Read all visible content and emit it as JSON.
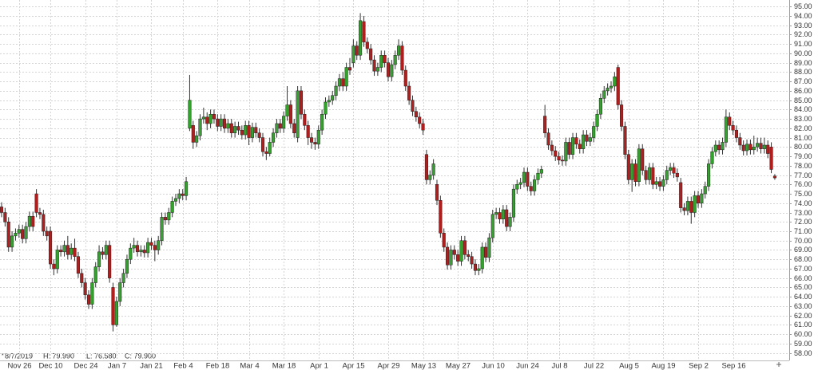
{
  "chart_data": {
    "type": "candlestick",
    "categories": [
      null,
      null,
      null,
      null,
      null,
      "Nov 26",
      null,
      null,
      null,
      null,
      null,
      null,
      null,
      null,
      "Dec 10",
      null,
      null,
      null,
      null,
      null,
      null,
      null,
      null,
      null,
      "Dec 24",
      null,
      null,
      null,
      null,
      null,
      null,
      null,
      null,
      "Jan 7",
      null,
      null,
      null,
      null,
      null,
      null,
      null,
      null,
      null,
      "Jan 21",
      null,
      null,
      null,
      null,
      null,
      null,
      null,
      null,
      "Feb 4",
      null,
      null,
      null,
      null,
      null,
      null,
      null,
      null,
      null,
      "Feb 18",
      null,
      null,
      null,
      null,
      null,
      null,
      null,
      null,
      "Mar 4",
      null,
      null,
      null,
      null,
      null,
      null,
      null,
      null,
      null,
      "Mar 18",
      null,
      null,
      null,
      null,
      null,
      null,
      null,
      null,
      null,
      "Apr 1",
      null,
      null,
      null,
      null,
      null,
      null,
      null,
      null,
      null,
      "Apr 15",
      null,
      null,
      null,
      null,
      null,
      null,
      null,
      null,
      null,
      "Apr 29",
      null,
      null,
      null,
      null,
      null,
      null,
      null,
      null,
      null,
      "May 13",
      null,
      null,
      null,
      null,
      null,
      null,
      null,
      null,
      null,
      "May 27",
      null,
      null,
      null,
      null,
      null,
      null,
      null,
      null,
      null,
      "Jun 10",
      null,
      null,
      null,
      null,
      null,
      null,
      null,
      null,
      null,
      "Jun 24",
      null,
      null,
      null,
      null,
      null,
      null,
      null,
      null,
      "Jul 8",
      null,
      null,
      null,
      null,
      null,
      null,
      null,
      null,
      null,
      "Jul 22",
      null,
      null,
      null,
      null,
      null,
      null,
      null,
      null,
      null,
      "Aug 5",
      null,
      null,
      null,
      null,
      null,
      null,
      null,
      null,
      null,
      "Aug 19",
      null,
      null,
      null,
      null,
      null,
      null,
      null,
      null,
      null,
      "Sep 2",
      null,
      null,
      null,
      null,
      null,
      null,
      null,
      null,
      null,
      "Sep 16",
      null,
      null,
      null,
      null,
      null,
      null,
      null,
      null,
      null,
      null,
      null,
      null
    ],
    "series": [
      {
        "up_color": "#35a12e",
        "down_color": "#b01e1e",
        "open": [
          73.6,
          73,
          72,
          69.3,
          70.5,
          70.8,
          71.2,
          70.2,
          71.5,
          72.6,
          75,
          73,
          72.8,
          71,
          71,
          67.5,
          67,
          69,
          68.8,
          69.5,
          68.5,
          69.2,
          68.3,
          66.5,
          65.5,
          64.2,
          63.2,
          65.5,
          67.2,
          68.8,
          68.5,
          69.5,
          65,
          61,
          63.5,
          65.5,
          66.5,
          68,
          69.2,
          69.5,
          68.8,
          69,
          68.7,
          69.8,
          69.5,
          69,
          70,
          72.5,
          72.2,
          73,
          74.2,
          74.5,
          75,
          74.8,
          82,
          82.3,
          80.5,
          81.2,
          83,
          83.2,
          82.5,
          83.5,
          83,
          82.2,
          83,
          82,
          82.5,
          81.5,
          82.2,
          81.8,
          81.3,
          82.3,
          81,
          82.1,
          81.5,
          81,
          79.5,
          79.3,
          80.5,
          81.5,
          82.5,
          82,
          83.3,
          84.5,
          82.5,
          81,
          86,
          83.5,
          82.3,
          81,
          80.5,
          80.3,
          81.8,
          83.5,
          84.8,
          85,
          85.5,
          86.5,
          87.3,
          86.5,
          88.5,
          89,
          90.8,
          89.8,
          93.4,
          91.2,
          90.5,
          89.3,
          88.1,
          88.5,
          89.8,
          89,
          87.5,
          88.8,
          89.8,
          90.8,
          88.2,
          86.5,
          85,
          83.8,
          83.2,
          82.5,
          79.2,
          76.5,
          77,
          76,
          74.3,
          70.8,
          69.3,
          67.4,
          69,
          68.5,
          67.8,
          70,
          68.5,
          68.3,
          67.5,
          66.8,
          67,
          69.3,
          68.2,
          70.3,
          72.8,
          73,
          72.3,
          73.3,
          71.5,
          72.5,
          75.5,
          76,
          76.2,
          77.3,
          75.8,
          75.3,
          76.5,
          77.2,
          83.3,
          81.5,
          80.2,
          79.6,
          79,
          78.6,
          78.5,
          80.5,
          79.2,
          81,
          80.3,
          79.8,
          81.3,
          80.6,
          81,
          82.2,
          83.5,
          85.2,
          86,
          86.3,
          86.5,
          88.5,
          84.5,
          82.2,
          79.2,
          76.5,
          78.2,
          76.3,
          79.8,
          77.5,
          76.5,
          77.8,
          76,
          76.3,
          75.8,
          76.5,
          77.5,
          77.8,
          77.2,
          76.2,
          73.5,
          73.2,
          74.2,
          73,
          74.8,
          74,
          75,
          75.8,
          78.2,
          79.5,
          80.2,
          79.7,
          80.5,
          83.2,
          82.3,
          81.8,
          81,
          80.2,
          79.6,
          80.3,
          79.7,
          80,
          80.4,
          79.8,
          80.2,
          80,
          76.9
        ],
        "high": [
          74.1,
          73.5,
          72.5,
          71,
          71.3,
          71.7,
          71.7,
          72,
          73.1,
          73.1,
          75.5,
          73.5,
          73.3,
          71.5,
          71.5,
          68,
          69.5,
          69.5,
          70,
          70.5,
          69.7,
          70.2,
          68.8,
          67,
          66,
          64.7,
          66,
          67.7,
          69.5,
          69.3,
          70,
          70,
          65.5,
          64,
          66,
          67,
          68.5,
          69.7,
          70.3,
          70,
          69.5,
          69.5,
          70.3,
          70.3,
          70,
          70.5,
          73,
          73,
          73.5,
          74.7,
          75,
          75.5,
          75.5,
          76.8,
          87.7,
          82.8,
          81.7,
          83.5,
          84.2,
          83.7,
          84,
          84,
          83.5,
          83.5,
          83.5,
          83,
          83,
          82.7,
          82.7,
          82.3,
          82.8,
          82.8,
          82.6,
          82.6,
          82,
          81.5,
          80,
          81,
          82,
          83,
          83,
          83.8,
          86.5,
          85,
          83,
          86.5,
          86.5,
          84,
          82.8,
          81.5,
          81,
          82.3,
          84,
          85.3,
          85.5,
          86,
          87,
          87.8,
          88,
          89,
          89.5,
          91.5,
          91.3,
          94.3,
          94,
          91.7,
          91,
          89.8,
          89,
          90.3,
          90.3,
          89.5,
          89.3,
          90.3,
          91.5,
          91.3,
          88.7,
          87,
          85.5,
          84.3,
          83.7,
          83,
          79.7,
          77.5,
          78.7,
          76.5,
          74.8,
          71.3,
          69.8,
          69.5,
          69.5,
          69,
          70.5,
          70.5,
          69,
          68.8,
          68,
          67.5,
          69.8,
          69.8,
          70.8,
          73.3,
          73.5,
          73.5,
          73.8,
          73.8,
          73,
          76,
          76.5,
          76.7,
          77.8,
          77.8,
          76.3,
          77,
          77.7,
          78,
          84.5,
          82,
          80.7,
          80.1,
          79.5,
          79.1,
          81,
          81,
          81.5,
          81.5,
          80.8,
          81.8,
          81.8,
          81.5,
          82.7,
          84,
          85.7,
          86.5,
          86.8,
          87,
          88,
          88.8,
          85,
          82.7,
          79.7,
          78.7,
          78.7,
          80.3,
          80.3,
          78,
          78.3,
          78.3,
          76.8,
          76.8,
          77,
          78,
          78.3,
          78.3,
          77.7,
          76.7,
          74,
          74.7,
          74.7,
          75.3,
          75.3,
          75.5,
          76.3,
          78.7,
          80,
          80.7,
          80.7,
          81,
          84,
          83.7,
          82.8,
          82.3,
          81.5,
          80.7,
          80.8,
          80.8,
          81.2,
          81,
          81,
          81,
          80.7,
          80.5,
          77.1
        ],
        "low": [
          72.5,
          71.5,
          68.8,
          68.8,
          70,
          70.3,
          69.7,
          69.7,
          71,
          71,
          72.5,
          72.3,
          70.5,
          70,
          67,
          66.3,
          66.5,
          68.3,
          68.3,
          68,
          68,
          67.8,
          66,
          65,
          63.7,
          62.7,
          62.7,
          65,
          66.7,
          68,
          68,
          65.5,
          60.3,
          60.8,
          63,
          65,
          66,
          67.5,
          68.7,
          68.3,
          68.3,
          68.2,
          68.2,
          69,
          67.8,
          68.5,
          69.5,
          71.7,
          71.7,
          72.5,
          73.7,
          74,
          74.3,
          74.3,
          81.7,
          79.8,
          80,
          80.7,
          82.5,
          81.8,
          82,
          82.5,
          81.7,
          81.7,
          81.5,
          81.5,
          81,
          81,
          81.3,
          80.8,
          80.8,
          80.2,
          80.5,
          81,
          80.5,
          79,
          78.6,
          79,
          80,
          81,
          81.5,
          81.5,
          82.8,
          82,
          81,
          80.5,
          83,
          81.8,
          80.2,
          79.8,
          79.7,
          79.8,
          81.3,
          83,
          84.3,
          84.5,
          85,
          86,
          86,
          86,
          87.7,
          88.5,
          89.3,
          89.3,
          90.7,
          90,
          88.8,
          87.6,
          87.6,
          88,
          88.5,
          87,
          87,
          88.3,
          89.3,
          87.7,
          86,
          84.5,
          83.3,
          82.7,
          82,
          81.3,
          76,
          76,
          76.5,
          73.8,
          70.3,
          68.8,
          66.9,
          66.9,
          68,
          67.3,
          67.3,
          68,
          67.8,
          67,
          66.3,
          66.3,
          66.5,
          67.7,
          67.7,
          69.8,
          72.3,
          71.8,
          71.8,
          71,
          71,
          72,
          75,
          75.5,
          75.7,
          75.3,
          74.8,
          74.8,
          76,
          76.7,
          81,
          79.7,
          79.1,
          78.5,
          78.1,
          78,
          78,
          78.7,
          78.7,
          79.8,
          79.3,
          79.3,
          80.1,
          80.1,
          80.5,
          81.7,
          83,
          84.7,
          85.5,
          85.8,
          86,
          84,
          81.7,
          78.7,
          76,
          75.2,
          75.8,
          75.8,
          77,
          76,
          76,
          75.5,
          75.5,
          75.3,
          75.3,
          76,
          77,
          76.7,
          76.3,
          73,
          72.7,
          72.7,
          71.8,
          72.5,
          73.5,
          73.5,
          74.5,
          75.3,
          77.7,
          79,
          79.2,
          79.2,
          80,
          81.8,
          81.3,
          80.5,
          79.7,
          79.1,
          79.1,
          79.2,
          79.2,
          79.5,
          79.3,
          79.3,
          78.8,
          77.2,
          76.5
        ],
        "close": [
          73,
          72,
          69.3,
          70.5,
          70.8,
          71.2,
          70.2,
          71.5,
          72.6,
          71.5,
          73,
          72.8,
          71,
          70.5,
          67.5,
          67,
          69,
          68.8,
          69.5,
          68.5,
          69.2,
          68.3,
          66.5,
          65.5,
          64.2,
          63.2,
          65.5,
          67.2,
          68.8,
          68.5,
          69.5,
          66,
          61,
          63.5,
          65.5,
          66.5,
          68,
          69.2,
          69.5,
          68.8,
          69,
          68.7,
          69.8,
          69.5,
          69,
          70,
          72.5,
          72.2,
          73,
          74.2,
          74.5,
          75,
          74.8,
          76.3,
          85,
          80.5,
          81.2,
          83,
          83.2,
          82.5,
          83.5,
          83,
          82.2,
          83,
          82,
          82.5,
          81.5,
          82.2,
          81.8,
          81.3,
          82.3,
          81,
          82.1,
          81.5,
          81,
          79.5,
          79.3,
          80.5,
          81.5,
          82.5,
          82,
          83.3,
          84.5,
          82.5,
          81.5,
          86,
          83.5,
          82.3,
          81,
          80.5,
          80.3,
          81.8,
          83.5,
          84.8,
          85,
          85.5,
          86.5,
          87.3,
          86.5,
          88.5,
          88.2,
          90.8,
          89.8,
          93.5,
          91.2,
          90.5,
          89.3,
          88.1,
          88.5,
          89.8,
          89,
          87.5,
          88.8,
          89.8,
          90.8,
          88.2,
          86.5,
          85,
          83.8,
          83.2,
          82.5,
          81.8,
          76.5,
          77,
          78.2,
          74.3,
          70.8,
          69.3,
          67.4,
          69,
          68.5,
          67.8,
          70,
          68.5,
          68.3,
          67.5,
          66.8,
          67,
          69.3,
          68.2,
          70.3,
          72.8,
          73,
          72.3,
          73.3,
          71.5,
          72.5,
          75.5,
          76,
          76.2,
          77.3,
          75.8,
          75.3,
          76.5,
          77.2,
          77.6,
          81.5,
          80.2,
          79.6,
          79,
          78.6,
          78.5,
          80.5,
          79.2,
          81,
          80.3,
          79.8,
          81.3,
          80.6,
          81,
          82.2,
          83.5,
          85.2,
          86,
          86.3,
          86.5,
          87.5,
          84.5,
          82.2,
          79.2,
          76.5,
          78.2,
          76.3,
          79.8,
          77.5,
          76.5,
          77.8,
          76,
          76.3,
          75.8,
          76.5,
          77.5,
          77.8,
          77.2,
          76.8,
          73.5,
          73.2,
          74.2,
          73,
          74.8,
          74,
          75,
          75.8,
          78.2,
          79.5,
          80.2,
          79.7,
          80.5,
          83.2,
          82.3,
          81.8,
          81,
          80.2,
          79.6,
          80.3,
          79.7,
          80,
          80.4,
          79.8,
          80.2,
          79.3,
          77.6,
          76.7
        ]
      }
    ],
    "ylim": [
      57.2,
      95.7
    ],
    "yticks": [
      {
        "value": 58,
        "label": "58.00"
      },
      {
        "value": 59,
        "label": "59.00"
      },
      {
        "value": 60,
        "label": "60.00"
      },
      {
        "value": 61,
        "label": "61.00"
      },
      {
        "value": 62,
        "label": "62.00"
      },
      {
        "value": 63,
        "label": "63.00"
      },
      {
        "value": 64,
        "label": "64.00"
      },
      {
        "value": 65,
        "label": "65.00"
      },
      {
        "value": 66,
        "label": "66.00"
      },
      {
        "value": 67,
        "label": "67.00"
      },
      {
        "value": 68,
        "label": "68.00"
      },
      {
        "value": 69,
        "label": "69.00"
      },
      {
        "value": 70,
        "label": "70.00"
      },
      {
        "value": 71,
        "label": "71.00"
      },
      {
        "value": 72,
        "label": "72.00"
      },
      {
        "value": 73,
        "label": "73.00"
      },
      {
        "value": 74,
        "label": "74.00"
      },
      {
        "value": 75,
        "label": "75.00"
      },
      {
        "value": 76,
        "label": "76.00"
      },
      {
        "value": 77,
        "label": "77.00"
      },
      {
        "value": 78,
        "label": "78.00"
      },
      {
        "value": 79,
        "label": "79.00"
      },
      {
        "value": 80,
        "label": "80.00"
      },
      {
        "value": 81,
        "label": "81.00"
      },
      {
        "value": 82,
        "label": "82.00"
      },
      {
        "value": 83,
        "label": "83.00"
      },
      {
        "value": 84,
        "label": "84.00"
      },
      {
        "value": 85,
        "label": "85.00"
      },
      {
        "value": 86,
        "label": "86.00"
      },
      {
        "value": 87,
        "label": "87.00"
      },
      {
        "value": 88,
        "label": "88.00"
      },
      {
        "value": 89,
        "label": "89.00"
      },
      {
        "value": 90,
        "label": "90.00"
      },
      {
        "value": 91,
        "label": "91.00"
      },
      {
        "value": 92,
        "label": "92.00"
      },
      {
        "value": 93,
        "label": "93.00"
      },
      {
        "value": 94,
        "label": "94.00"
      },
      {
        "value": 95,
        "label": "95.00"
      }
    ],
    "grid": true,
    "info": {
      "date": "8/7/2019",
      "high": "H: 79.990",
      "low": "L: 76.580",
      "close": "C: 79.900"
    }
  }
}
